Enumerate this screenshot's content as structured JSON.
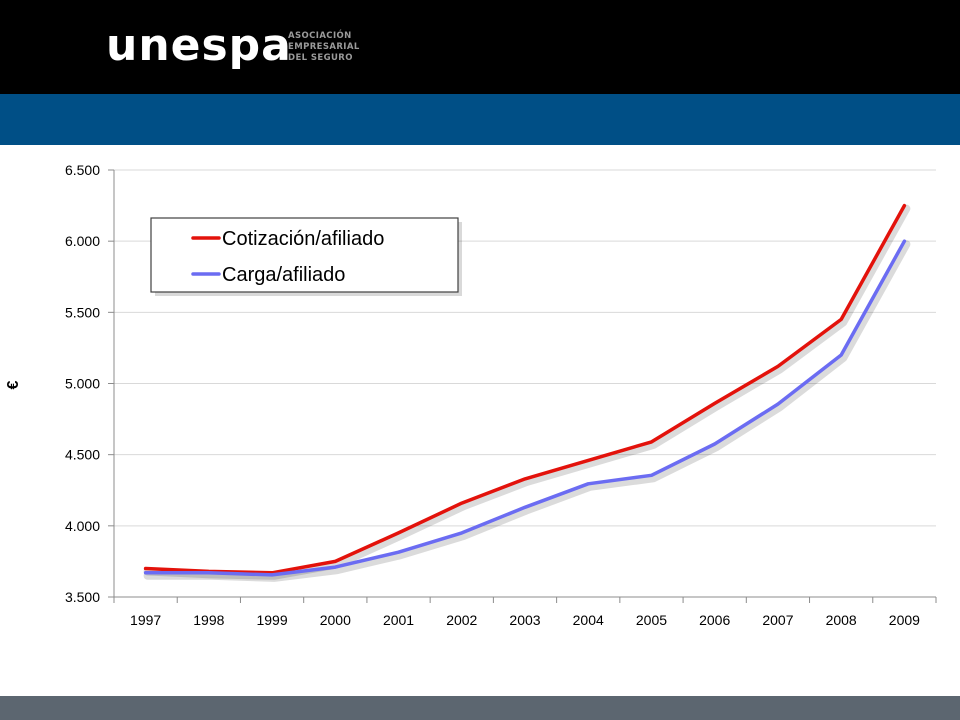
{
  "header": {
    "logo_word": "unespa",
    "logo_lines": [
      "ASOCIACIÓN",
      "EMPRESARIAL",
      "DEL SEGURO"
    ]
  },
  "colors": {
    "top_bar": "#000000",
    "band": "#004f86",
    "footer": "#5c6670",
    "series_1": "#e3120b",
    "series_2": "#6b6cf2"
  },
  "chart_data": {
    "type": "line",
    "x": [
      "1997",
      "1998",
      "1999",
      "2000",
      "2001",
      "2002",
      "2003",
      "2004",
      "2005",
      "2006",
      "2007",
      "2008",
      "2009"
    ],
    "ylabel": "€",
    "ylim": [
      3500,
      6500
    ],
    "yticks": [
      3500,
      4000,
      4500,
      5000,
      5500,
      6000,
      6500
    ],
    "ytick_labels": [
      "3.500",
      "4.000",
      "4.500",
      "5.000",
      "5.500",
      "6.000",
      "6.500"
    ],
    "grid": true,
    "legend_position": "top-left",
    "series": [
      {
        "name": "Cotización/afiliado",
        "color": "#e3120b",
        "values": [
          3700,
          3680,
          3670,
          3750,
          3950,
          4160,
          4330,
          4460,
          4590,
          4860,
          5120,
          5450,
          6250
        ]
      },
      {
        "name": "Carga/afiliado",
        "color": "#6b6cf2",
        "values": [
          3670,
          3670,
          3655,
          3710,
          3815,
          3950,
          4130,
          4295,
          4355,
          4575,
          4855,
          5200,
          6000
        ]
      }
    ]
  }
}
